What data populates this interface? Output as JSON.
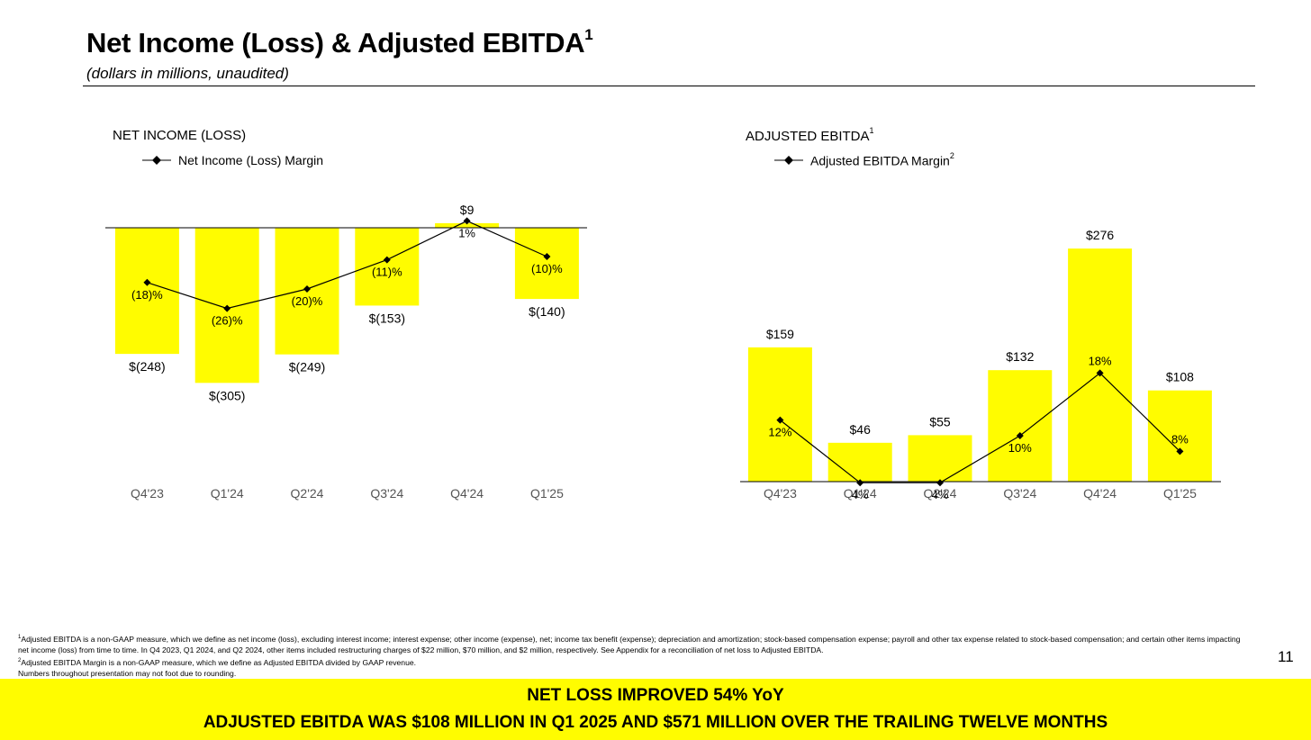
{
  "header": {
    "title": "Net Income (Loss) & Adjusted EBITDA",
    "title_sup": "1",
    "subtitle": "(dollars in millions, unaudited)"
  },
  "colors": {
    "bar": "#fffc00",
    "banner": "#fffc00",
    "line": "#000000",
    "text": "#000000",
    "axis_tick": "#555555"
  },
  "chart_data": [
    {
      "type": "bar",
      "title": "NET INCOME (LOSS)",
      "legend": "Net Income (Loss) Margin",
      "categories": [
        "Q4'23",
        "Q1'24",
        "Q2'24",
        "Q3'24",
        "Q4'24",
        "Q1'25"
      ],
      "values": [
        -248,
        -305,
        -249,
        -153,
        9,
        -140
      ],
      "value_labels": [
        "$(248)",
        "$(305)",
        "$(249)",
        "$(153)",
        "$9",
        "$(140)"
      ],
      "margin_values": [
        -18,
        -26,
        -20,
        -11,
        1,
        -10
      ],
      "margin_labels": [
        "(18)%",
        "(26)%",
        "(20)%",
        "(11)%",
        "1%",
        "(10)%"
      ],
      "ylim": [
        -305,
        9
      ],
      "grid": false,
      "legend_position": "top-left"
    },
    {
      "type": "bar",
      "title": "ADJUSTED EBITDA",
      "title_sup": "1",
      "legend": "Adjusted EBITDA Margin",
      "legend_sup": "2",
      "categories": [
        "Q4'23",
        "Q1'24",
        "Q2'24",
        "Q3'24",
        "Q4'24",
        "Q1'25"
      ],
      "values": [
        159,
        46,
        55,
        132,
        276,
        108
      ],
      "value_labels": [
        "$159",
        "$46",
        "$55",
        "$132",
        "$276",
        "$108"
      ],
      "margin_values": [
        12,
        4,
        4,
        10,
        18,
        8
      ],
      "margin_labels": [
        "12%",
        "4%",
        "4%",
        "10%",
        "18%",
        "8%"
      ],
      "ylim": [
        0,
        276
      ],
      "grid": false,
      "legend_position": "top-left"
    }
  ],
  "footnotes": {
    "n1_sup": "1",
    "n1": "Adjusted EBITDA is a non-GAAP measure, which we define as net income (loss), excluding interest income; interest expense; other income (expense), net; income tax benefit (expense); depreciation and amortization; stock-based compensation expense; payroll and other tax expense related to stock-based compensation; and certain other items impacting net income (loss) from time to time. In Q4 2023, Q1 2024, and Q2 2024, other items included restructuring charges of $22 million, $70 million, and $2 million, respectively. See Appendix for a reconciliation of net loss to Adjusted EBITDA.",
    "n2_sup": "2",
    "n2": "Adjusted EBITDA Margin is a non-GAAP measure, which we define as Adjusted EBITDA divided by GAAP revenue.",
    "n3": "Numbers throughout presentation may not foot due to rounding."
  },
  "page_number": "11",
  "banner": {
    "line1": "NET LOSS IMPROVED 54% YoY",
    "line2": "ADJUSTED EBITDA WAS $108 MILLION IN Q1 2025 AND $571 MILLION OVER THE TRAILING TWELVE MONTHS"
  }
}
